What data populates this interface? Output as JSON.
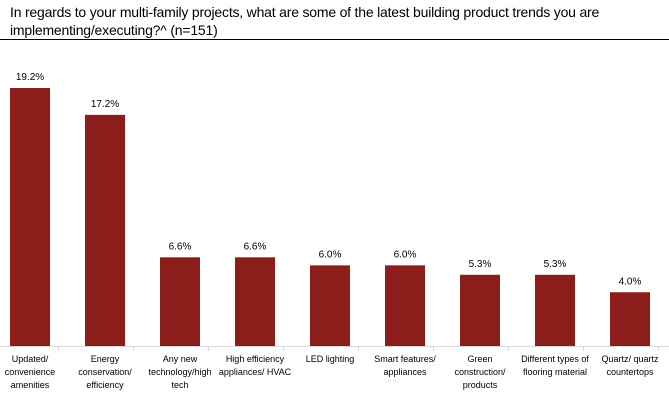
{
  "chart_data": {
    "type": "bar",
    "title": "In regards to your multi-family projects, what are some of the latest building product trends you are implementing/executing?^ (n=151)",
    "categories": [
      "Updated/ convenience amenities",
      "Energy conservation/ efficiency",
      "Any new technology/high tech",
      "High efficiency appliances/ HVAC",
      "LED lighting",
      "Smart features/ appliances",
      "Green construction/ products",
      "Different types of flooring material",
      "Quartz/ quartz countertops"
    ],
    "values": [
      19.2,
      17.2,
      6.6,
      6.6,
      6.0,
      6.0,
      5.3,
      5.3,
      4.0
    ],
    "value_labels": [
      "19.2%",
      "17.2%",
      "6.6%",
      "6.6%",
      "6.0%",
      "6.0%",
      "5.3%",
      "5.3%",
      "4.0%"
    ],
    "unit": "%",
    "xlabel": "",
    "ylabel": "",
    "ylim": [
      0,
      20
    ],
    "grid": false,
    "bar_color": "#8B1E1B"
  }
}
